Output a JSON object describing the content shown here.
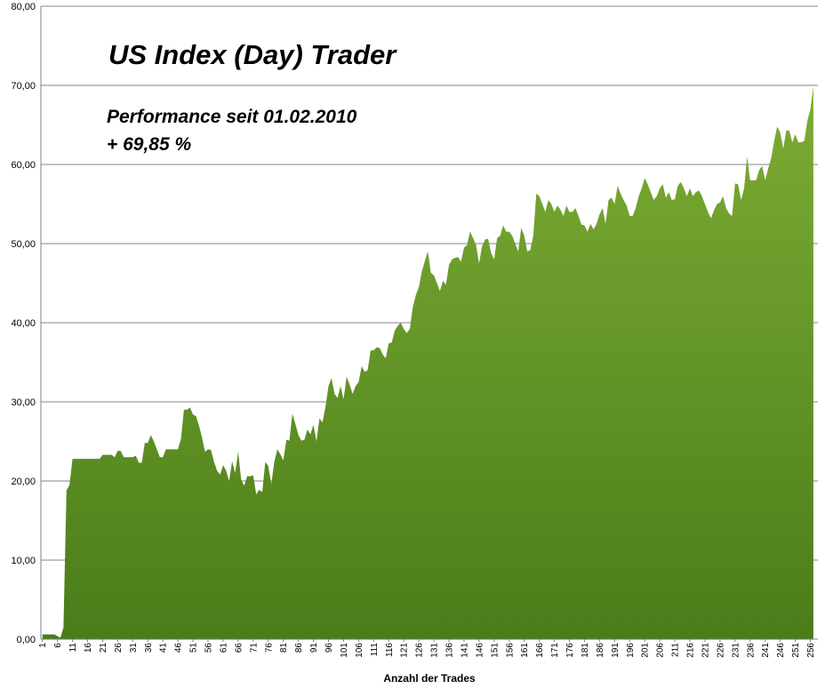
{
  "chart_data": {
    "type": "area",
    "title": "US Index (Day) Trader",
    "annotation_line1": "Performance  seit  01.02.2010",
    "annotation_line2": "+ 69,85 %",
    "xlabel": "Anzahl der Trades",
    "ylabel": "",
    "ylim": [
      0,
      80
    ],
    "y_ticks": [
      "0,00",
      "10,00",
      "20,00",
      "30,00",
      "40,00",
      "50,00",
      "60,00",
      "70,00",
      "80,00"
    ],
    "x_tick_labels": [
      "1",
      "6",
      "11",
      "16",
      "21",
      "26",
      "31",
      "36",
      "41",
      "46",
      "51",
      "56",
      "61",
      "66",
      "71",
      "76",
      "81",
      "86",
      "91",
      "96",
      "101",
      "106",
      "111",
      "116",
      "121",
      "126",
      "131",
      "136",
      "141",
      "146",
      "151",
      "156",
      "161",
      "166",
      "171",
      "176",
      "181",
      "186",
      "191",
      "196",
      "201",
      "206",
      "211",
      "216",
      "221",
      "226",
      "231",
      "236",
      "241",
      "246",
      "251",
      "256"
    ],
    "x_range": [
      1,
      258
    ],
    "grid": "horizontal",
    "fill_color_top": "#7dac34",
    "fill_color_bottom": "#4a7d1a",
    "series": [
      {
        "points": [
          [
            1,
            0.6
          ],
          [
            5,
            0.6
          ],
          [
            6,
            0.4
          ],
          [
            7,
            0.2
          ],
          [
            8,
            1.5
          ],
          [
            9,
            18.8
          ],
          [
            10,
            19.5
          ],
          [
            11,
            22.8
          ],
          [
            20,
            22.8
          ],
          [
            21,
            23.3
          ],
          [
            24,
            23.3
          ],
          [
            25,
            23.0
          ],
          [
            26,
            23.8
          ],
          [
            27,
            23.8
          ],
          [
            28,
            23.0
          ],
          [
            31,
            23.0
          ],
          [
            32,
            23.2
          ],
          [
            33,
            22.3
          ],
          [
            34,
            22.3
          ],
          [
            35,
            24.8
          ],
          [
            36,
            24.8
          ],
          [
            37,
            25.8
          ],
          [
            38,
            25.0
          ],
          [
            39,
            24.0
          ],
          [
            40,
            23.0
          ],
          [
            41,
            23.0
          ],
          [
            42,
            24.0
          ],
          [
            46,
            24.0
          ],
          [
            47,
            25.3
          ],
          [
            48,
            29.0
          ],
          [
            49,
            29.0
          ],
          [
            50,
            29.3
          ],
          [
            51,
            28.4
          ],
          [
            52,
            28.2
          ],
          [
            53,
            27.0
          ],
          [
            54,
            25.5
          ],
          [
            55,
            23.7
          ],
          [
            56,
            24.0
          ],
          [
            57,
            23.9
          ],
          [
            58,
            22.4
          ],
          [
            59,
            21.3
          ],
          [
            60,
            20.8
          ],
          [
            61,
            22.0
          ],
          [
            62,
            21.3
          ],
          [
            63,
            20.0
          ],
          [
            64,
            22.5
          ],
          [
            65,
            21.0
          ],
          [
            66,
            23.7
          ],
          [
            67,
            20.2
          ],
          [
            68,
            19.4
          ],
          [
            69,
            20.6
          ],
          [
            70,
            20.6
          ],
          [
            71,
            20.7
          ],
          [
            72,
            18.3
          ],
          [
            73,
            18.9
          ],
          [
            74,
            18.6
          ],
          [
            75,
            22.4
          ],
          [
            76,
            21.9
          ],
          [
            77,
            19.6
          ],
          [
            78,
            22.4
          ],
          [
            79,
            24.0
          ],
          [
            80,
            23.4
          ],
          [
            81,
            22.6
          ],
          [
            82,
            25.2
          ],
          [
            83,
            25.1
          ],
          [
            84,
            28.5
          ],
          [
            85,
            27.2
          ],
          [
            86,
            25.8
          ],
          [
            87,
            25.1
          ],
          [
            88,
            25.2
          ],
          [
            89,
            26.5
          ],
          [
            90,
            25.9
          ],
          [
            91,
            27.1
          ],
          [
            92,
            25.0
          ],
          [
            93,
            27.9
          ],
          [
            94,
            27.4
          ],
          [
            95,
            29.4
          ],
          [
            96,
            32.0
          ],
          [
            97,
            33.0
          ],
          [
            98,
            31.0
          ],
          [
            99,
            30.5
          ],
          [
            100,
            32.0
          ],
          [
            101,
            30.3
          ],
          [
            102,
            33.2
          ],
          [
            103,
            32.2
          ],
          [
            104,
            31.0
          ],
          [
            105,
            32.0
          ],
          [
            106,
            32.5
          ],
          [
            107,
            34.5
          ],
          [
            108,
            33.8
          ],
          [
            109,
            34.0
          ],
          [
            110,
            36.5
          ],
          [
            111,
            36.5
          ],
          [
            112,
            36.9
          ],
          [
            113,
            36.8
          ],
          [
            114,
            36.0
          ],
          [
            115,
            35.5
          ],
          [
            116,
            37.4
          ],
          [
            117,
            37.5
          ],
          [
            118,
            39.0
          ],
          [
            119,
            39.6
          ],
          [
            120,
            40.0
          ],
          [
            121,
            39.2
          ],
          [
            122,
            38.7
          ],
          [
            123,
            39.2
          ],
          [
            124,
            42.0
          ],
          [
            125,
            43.5
          ],
          [
            126,
            44.5
          ],
          [
            127,
            46.5
          ],
          [
            128,
            47.8
          ],
          [
            129,
            49.0
          ],
          [
            130,
            46.3
          ],
          [
            131,
            46.0
          ],
          [
            132,
            45.0
          ],
          [
            133,
            44.0
          ],
          [
            134,
            45.3
          ],
          [
            135,
            44.8
          ],
          [
            136,
            47.3
          ],
          [
            137,
            48.0
          ],
          [
            138,
            48.2
          ],
          [
            139,
            48.3
          ],
          [
            140,
            47.7
          ],
          [
            141,
            49.5
          ],
          [
            142,
            49.8
          ],
          [
            143,
            51.5
          ],
          [
            144,
            50.7
          ],
          [
            145,
            49.8
          ],
          [
            146,
            47.5
          ],
          [
            147,
            49.7
          ],
          [
            148,
            50.5
          ],
          [
            149,
            50.6
          ],
          [
            150,
            48.8
          ],
          [
            151,
            48.0
          ],
          [
            152,
            50.7
          ],
          [
            153,
            51.0
          ],
          [
            154,
            52.3
          ],
          [
            155,
            51.5
          ],
          [
            156,
            51.5
          ],
          [
            157,
            51.0
          ],
          [
            158,
            50.0
          ],
          [
            159,
            49.0
          ],
          [
            160,
            52.0
          ],
          [
            161,
            51.0
          ],
          [
            162,
            49.0
          ],
          [
            163,
            49.2
          ],
          [
            164,
            51.0
          ],
          [
            165,
            56.3
          ],
          [
            166,
            56.0
          ],
          [
            167,
            55.0
          ],
          [
            168,
            54.0
          ],
          [
            169,
            55.5
          ],
          [
            170,
            55.0
          ],
          [
            171,
            54.0
          ],
          [
            172,
            54.8
          ],
          [
            173,
            54.3
          ],
          [
            174,
            53.5
          ],
          [
            175,
            54.8
          ],
          [
            176,
            54.0
          ],
          [
            177,
            54.0
          ],
          [
            178,
            54.5
          ],
          [
            179,
            53.5
          ],
          [
            180,
            52.4
          ],
          [
            181,
            52.3
          ],
          [
            182,
            51.5
          ],
          [
            183,
            52.5
          ],
          [
            184,
            51.8
          ],
          [
            185,
            52.5
          ],
          [
            186,
            53.7
          ],
          [
            187,
            54.5
          ],
          [
            188,
            52.5
          ],
          [
            189,
            55.5
          ],
          [
            190,
            55.8
          ],
          [
            191,
            55.0
          ],
          [
            192,
            57.3
          ],
          [
            193,
            56.3
          ],
          [
            194,
            55.5
          ],
          [
            195,
            54.8
          ],
          [
            196,
            53.5
          ],
          [
            197,
            53.5
          ],
          [
            198,
            54.5
          ],
          [
            199,
            56.0
          ],
          [
            200,
            57.0
          ],
          [
            201,
            58.3
          ],
          [
            202,
            57.5
          ],
          [
            203,
            56.5
          ],
          [
            204,
            55.5
          ],
          [
            205,
            56.0
          ],
          [
            206,
            57.0
          ],
          [
            207,
            57.5
          ],
          [
            208,
            55.8
          ],
          [
            209,
            56.5
          ],
          [
            210,
            55.5
          ],
          [
            211,
            55.6
          ],
          [
            212,
            57.3
          ],
          [
            213,
            57.8
          ],
          [
            214,
            57.0
          ],
          [
            215,
            56.0
          ],
          [
            216,
            57.0
          ],
          [
            217,
            56.0
          ],
          [
            218,
            56.5
          ],
          [
            219,
            56.7
          ],
          [
            220,
            56.0
          ],
          [
            221,
            55.0
          ],
          [
            222,
            54.0
          ],
          [
            223,
            53.2
          ],
          [
            224,
            54.2
          ],
          [
            225,
            55.0
          ],
          [
            226,
            55.2
          ],
          [
            227,
            56.0
          ],
          [
            228,
            54.5
          ],
          [
            229,
            53.8
          ],
          [
            230,
            53.5
          ],
          [
            231,
            57.6
          ],
          [
            232,
            57.5
          ],
          [
            233,
            55.5
          ],
          [
            234,
            57.0
          ],
          [
            235,
            61.0
          ],
          [
            236,
            58.0
          ],
          [
            237,
            58.0
          ],
          [
            238,
            58.0
          ],
          [
            239,
            59.3
          ],
          [
            240,
            59.8
          ],
          [
            241,
            58.0
          ],
          [
            242,
            59.5
          ],
          [
            243,
            60.8
          ],
          [
            244,
            63.0
          ],
          [
            245,
            64.8
          ],
          [
            246,
            64.0
          ],
          [
            247,
            62.0
          ],
          [
            248,
            64.3
          ],
          [
            249,
            64.3
          ],
          [
            250,
            62.8
          ],
          [
            251,
            63.8
          ],
          [
            252,
            62.8
          ],
          [
            253,
            62.8
          ],
          [
            254,
            63.0
          ],
          [
            255,
            65.5
          ],
          [
            256,
            67.0
          ],
          [
            257,
            69.85
          ]
        ]
      }
    ]
  }
}
